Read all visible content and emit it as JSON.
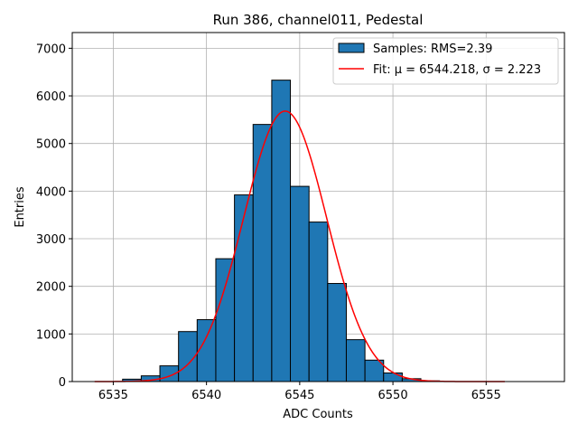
{
  "chart_data": {
    "type": "bar",
    "title": "Run 386, channel011, Pedestal",
    "xlabel": "ADC Counts",
    "ylabel": "Entries",
    "xlim": [
      6532.8,
      6559.2
    ],
    "ylim": [
      0,
      7330
    ],
    "xticks": [
      6535,
      6540,
      6545,
      6550,
      6555
    ],
    "yticks": [
      0,
      1000,
      2000,
      3000,
      4000,
      5000,
      6000,
      7000
    ],
    "grid": true,
    "legend_position": "top-right",
    "colors": {
      "bars": "#1f77b4",
      "bar_edge": "#000000",
      "fit": "#ff0000",
      "grid": "#b0b0b0"
    },
    "bin_width": 1,
    "bins": [
      {
        "x": 6536,
        "count": 50
      },
      {
        "x": 6537,
        "count": 120
      },
      {
        "x": 6538,
        "count": 330
      },
      {
        "x": 6539,
        "count": 1050
      },
      {
        "x": 6540,
        "count": 1300
      },
      {
        "x": 6541,
        "count": 2580
      },
      {
        "x": 6542,
        "count": 3920
      },
      {
        "x": 6543,
        "count": 5400
      },
      {
        "x": 6544,
        "count": 6330
      },
      {
        "x": 6545,
        "count": 4100
      },
      {
        "x": 6546,
        "count": 3350
      },
      {
        "x": 6547,
        "count": 2060
      },
      {
        "x": 6548,
        "count": 880
      },
      {
        "x": 6549,
        "count": 450
      },
      {
        "x": 6550,
        "count": 180
      },
      {
        "x": 6551,
        "count": 60
      },
      {
        "x": 6552,
        "count": 15
      }
    ],
    "series": [
      {
        "name": "Samples: RMS=2.39",
        "kind": "histogram"
      },
      {
        "name": "Fit: μ = 6544.218, σ = 2.223",
        "kind": "gaussian",
        "mu": 6544.218,
        "sigma": 2.223,
        "amplitude": 5680,
        "x_range": [
          6534,
          6556
        ]
      }
    ]
  }
}
